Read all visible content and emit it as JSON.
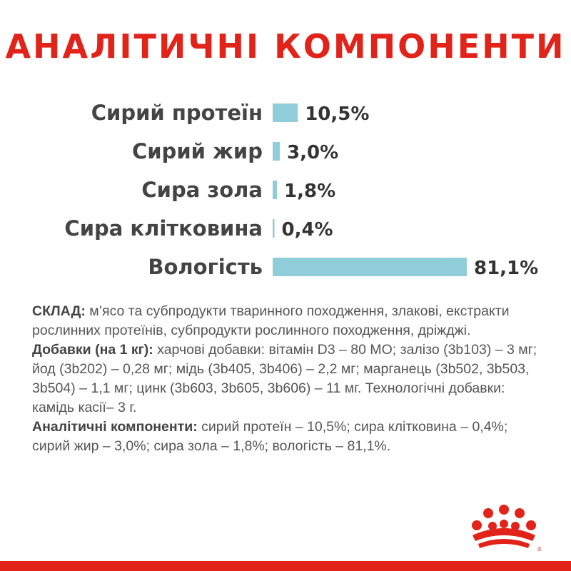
{
  "title": "АНАЛІТИЧНІ КОМПОНЕНТИ",
  "chart_data": {
    "type": "bar",
    "orientation": "horizontal",
    "categories": [
      "Сирий протеїн",
      "Сирий жир",
      "Сира зола",
      "Сира клітковина",
      "Вологість"
    ],
    "values": [
      10.5,
      3.0,
      1.8,
      0.4,
      81.1
    ],
    "value_labels": [
      "10,5%",
      "3,0%",
      "1,8%",
      "0,4%",
      "81,1%"
    ],
    "unit": "%",
    "title": "АНАЛІТИЧНІ КОМПОНЕНТИ",
    "xlabel": "",
    "ylabel": "",
    "bar_color": "#8fcdd9",
    "grid": false,
    "legend": "none"
  },
  "composition": {
    "p1_label": "СКЛАД:",
    "p1_text": " м’ясо та субпродукти тваринного походження, злакові, екстракти рослинних протеїнів, субпродукти рослинного походження, дріжджі.",
    "p2_label": "Добавки (на 1 кг):",
    "p2_text": " харчові добавки: вітамін D3 – 80 МО; залізо (3b103) – 3 мг; йод (3b202) – 0,28 мг; мідь (3b405, 3b406) – 2,2 мг; марганець (3b502, 3b503, 3b504) – 1,1 мг; цинк (3b603, 3b605, 3b606) – 11 мг. Технологічні добавки: камідь касії– 3 г.",
    "p3_label": "Аналітичні компоненти:",
    "p3_text": " сирий протеїн – 10,5%; сира клітковина – 0,4%; сирий жир – 3,0%; сира зола – 1,8%; вологість – 81,1%."
  },
  "colors": {
    "brand_red": "#e2231a",
    "bar": "#8fcdd9",
    "text": "#555555"
  },
  "logo": {
    "icon": "royal-canin-crown-logo"
  }
}
